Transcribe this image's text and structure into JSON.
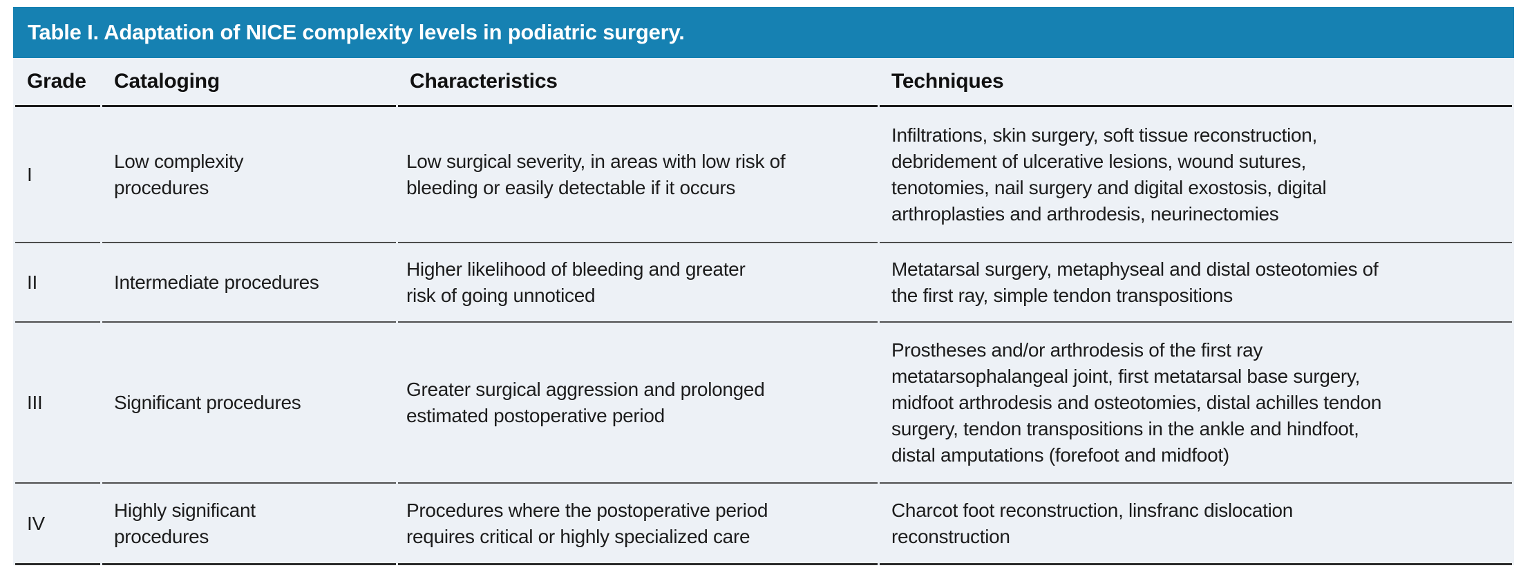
{
  "table": {
    "title": "Table I. Adaptation of NICE complexity levels in podiatric surgery.",
    "columns": [
      "Grade",
      "Cataloging",
      "Characteristics",
      "Techniques"
    ],
    "rows": [
      {
        "grade": "I",
        "cataloging": "Low complexity\nprocedures",
        "characteristics": "Low surgical severity, in areas with low risk of\nbleeding or easily detectable if it occurs",
        "techniques": "Infiltrations, skin surgery, soft tissue reconstruction,\ndebridement of ulcerative lesions, wound sutures,\ntenotomies, nail surgery and digital exostosis, digital\narthroplasties and arthrodesis, neurinectomies"
      },
      {
        "grade": "II",
        "cataloging": "Intermediate procedures",
        "characteristics": "Higher likelihood of bleeding and greater\nrisk of going unnoticed",
        "techniques": "Metatarsal surgery, metaphyseal and distal osteotomies of\nthe first ray, simple tendon transpositions"
      },
      {
        "grade": "III",
        "cataloging": "Significant procedures",
        "characteristics": "Greater surgical aggression and prolonged\nestimated postoperative period",
        "techniques": "Prostheses and/or arthrodesis of the first ray\nmetatarsophalangeal joint, first metatarsal base surgery,\nmidfoot arthrodesis and osteotomies, distal achilles tendon\nsurgery, tendon transpositions in the ankle and hindfoot,\ndistal amputations (forefoot and midfoot)"
      },
      {
        "grade": "IV",
        "cataloging": "Highly significant\nprocedures",
        "characteristics": "Procedures where the postoperative period\nrequires critical or highly specialized care",
        "techniques": "Charcot foot reconstruction, linsfranc dislocation\nreconstruction"
      }
    ]
  },
  "colors": {
    "title_bar_bg": "#1681b2",
    "title_text": "#ffffff",
    "table_bg": "#edf1f6",
    "header_rule": "#1a1a1a",
    "row_rule": "#4d4d4d",
    "bottom_rule": "#2b2b2b"
  }
}
